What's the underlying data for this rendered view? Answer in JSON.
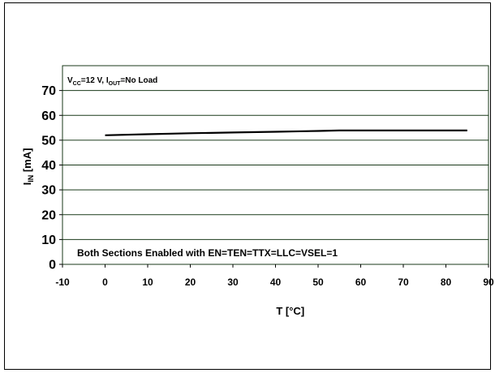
{
  "chart_data": {
    "type": "line",
    "xlabel": "T [°C]",
    "ylabel": {
      "main": "I",
      "sub": "IN",
      "unit": " [mA]"
    },
    "xlim": [
      -10,
      90
    ],
    "ylim": [
      0,
      80
    ],
    "x_ticks": [
      -10,
      0,
      10,
      20,
      30,
      40,
      50,
      60,
      70,
      80,
      90
    ],
    "y_ticks": [
      0,
      10,
      20,
      30,
      40,
      50,
      60,
      70
    ],
    "grid": "horizontal",
    "annotations": {
      "conditions": {
        "p1": "V",
        "s1": "CC",
        "p2": "=12 V, I",
        "s2": "OUT",
        "p3": "=No Load"
      },
      "note": "Both Sections Enabled with EN=TEN=TTX=LLC=VSEL=1"
    },
    "series": [
      {
        "color": "#000000",
        "x": [
          0,
          10,
          20,
          30,
          40,
          50,
          55,
          60,
          70,
          80,
          85
        ],
        "y": [
          52.0,
          52.4,
          52.8,
          53.1,
          53.4,
          53.7,
          53.9,
          53.9,
          53.9,
          53.9,
          53.9
        ]
      }
    ],
    "colors": {
      "plot_border": "#1a3a1a",
      "grid": "#1a3a1a",
      "line": "#000000"
    }
  }
}
